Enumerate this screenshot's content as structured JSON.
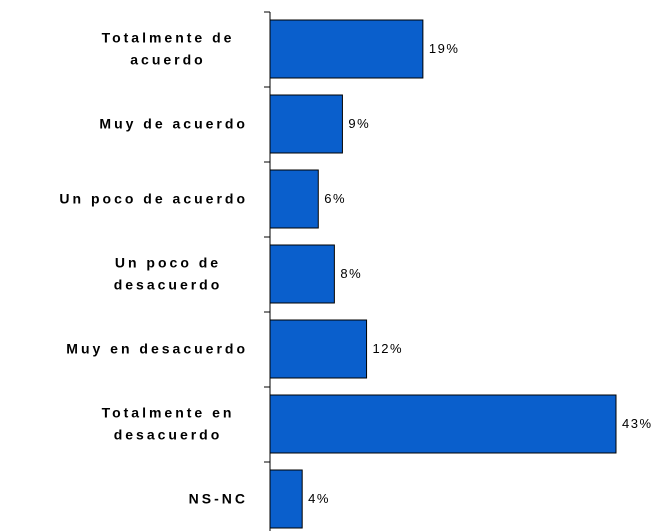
{
  "chart_data": {
    "type": "bar",
    "orientation": "horizontal",
    "categories": [
      "Totalmente de\nacuerdo",
      "Muy de acuerdo",
      "Un poco de acuerdo",
      "Un poco de\ndesacuerdo",
      "Muy en desacuerdo",
      "Totalmente en\ndesacuerdo",
      "NS-NC"
    ],
    "values": [
      19,
      9,
      6,
      8,
      12,
      43,
      4
    ],
    "value_labels": [
      "19%",
      "9%",
      "6%",
      "8%",
      "12%",
      "43%",
      "4%"
    ],
    "color": "#0a5fcc"
  }
}
